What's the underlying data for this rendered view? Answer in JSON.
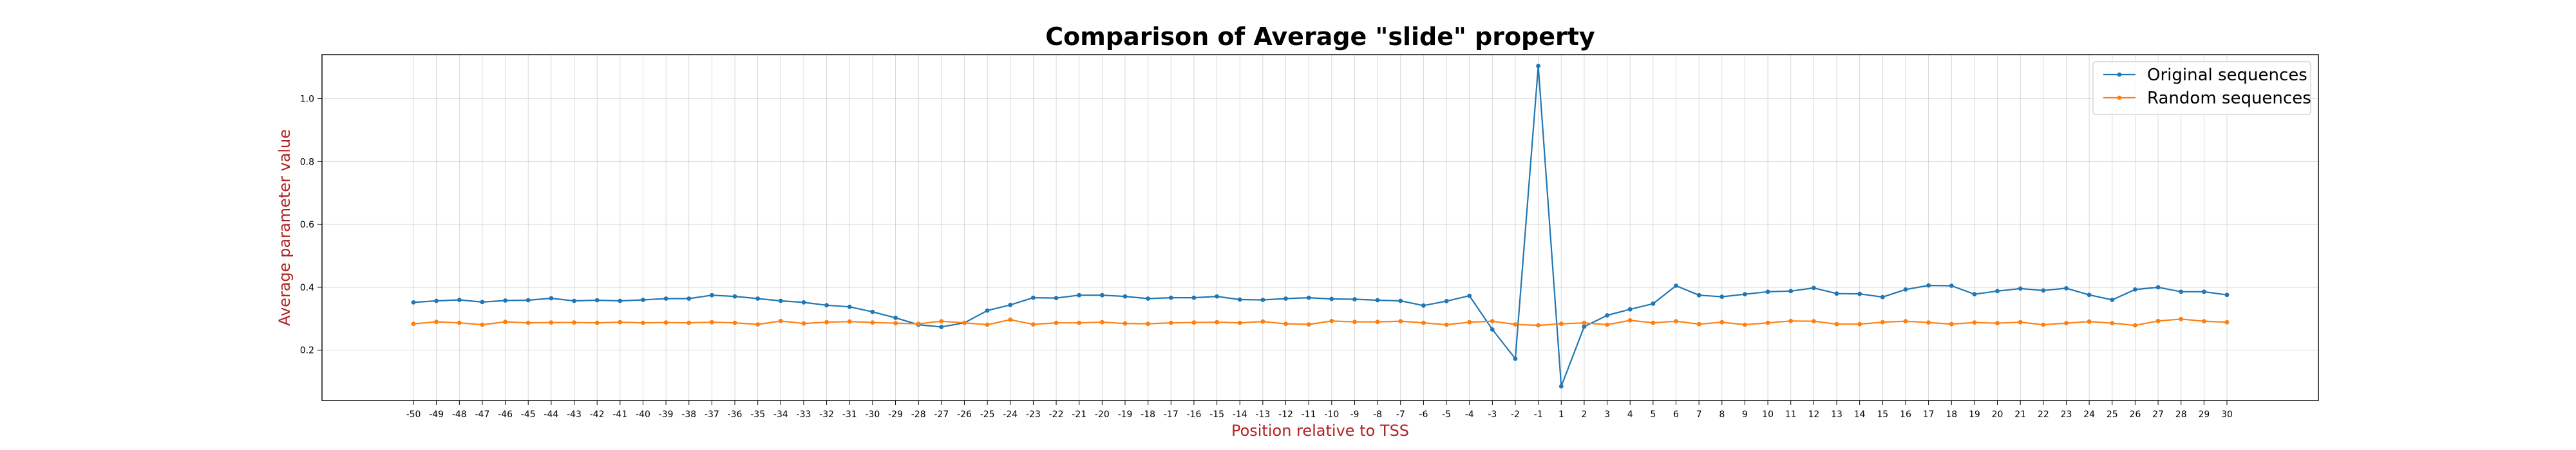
{
  "chart_data": {
    "type": "line",
    "title": "Comparison of Average \"slide\" property",
    "xlabel": "Position relative to TSS",
    "ylabel": "Average parameter value",
    "label_color": "#b22222",
    "x": [
      -50,
      -49,
      -48,
      -47,
      -46,
      -45,
      -44,
      -43,
      -42,
      -41,
      -40,
      -39,
      -38,
      -37,
      -36,
      -35,
      -34,
      -33,
      -32,
      -31,
      -30,
      -29,
      -28,
      -27,
      -26,
      -25,
      -24,
      -23,
      -22,
      -21,
      -20,
      -19,
      -18,
      -17,
      -16,
      -15,
      -14,
      -13,
      -12,
      -11,
      -10,
      -9,
      -8,
      -7,
      -6,
      -5,
      -4,
      -3,
      -2,
      -1,
      1,
      2,
      3,
      4,
      5,
      6,
      7,
      8,
      9,
      10,
      11,
      12,
      13,
      14,
      15,
      16,
      17,
      18,
      19,
      20,
      21,
      22,
      23,
      24,
      25,
      26,
      27,
      28,
      29,
      30
    ],
    "ylim": [
      0.04,
      1.14
    ],
    "yticks": [
      "0.2",
      "0.4",
      "0.6",
      "0.8",
      "1.0"
    ],
    "grid": true,
    "legend_position": "top-right",
    "series": [
      {
        "name": "Original sequences",
        "color": "#1f77b4",
        "values": [
          0.352,
          0.357,
          0.36,
          0.353,
          0.358,
          0.359,
          0.365,
          0.357,
          0.359,
          0.357,
          0.36,
          0.364,
          0.364,
          0.375,
          0.371,
          0.364,
          0.357,
          0.352,
          0.343,
          0.338,
          0.322,
          0.303,
          0.281,
          0.274,
          0.287,
          0.326,
          0.344,
          0.367,
          0.366,
          0.375,
          0.375,
          0.371,
          0.364,
          0.367,
          0.367,
          0.371,
          0.361,
          0.36,
          0.364,
          0.367,
          0.363,
          0.362,
          0.359,
          0.357,
          0.342,
          0.356,
          0.373,
          0.266,
          0.173,
          1.104,
          0.085,
          0.275,
          0.311,
          0.33,
          0.348,
          0.405,
          0.375,
          0.37,
          0.378,
          0.386,
          0.388,
          0.398,
          0.38,
          0.379,
          0.369,
          0.393,
          0.406,
          0.405,
          0.378,
          0.388,
          0.396,
          0.39,
          0.397,
          0.376,
          0.36,
          0.393,
          0.4,
          0.386,
          0.386,
          0.376
        ]
      },
      {
        "name": "Random sequences",
        "color": "#ff7f0e",
        "values": [
          0.284,
          0.29,
          0.287,
          0.281,
          0.29,
          0.287,
          0.288,
          0.288,
          0.287,
          0.289,
          0.287,
          0.288,
          0.287,
          0.289,
          0.287,
          0.282,
          0.293,
          0.285,
          0.289,
          0.291,
          0.288,
          0.286,
          0.284,
          0.292,
          0.287,
          0.281,
          0.297,
          0.282,
          0.287,
          0.287,
          0.289,
          0.285,
          0.284,
          0.287,
          0.288,
          0.289,
          0.287,
          0.291,
          0.284,
          0.282,
          0.293,
          0.29,
          0.29,
          0.292,
          0.287,
          0.281,
          0.289,
          0.292,
          0.282,
          0.279,
          0.284,
          0.287,
          0.281,
          0.295,
          0.287,
          0.292,
          0.283,
          0.289,
          0.281,
          0.287,
          0.293,
          0.292,
          0.283,
          0.283,
          0.289,
          0.292,
          0.288,
          0.283,
          0.288,
          0.286,
          0.289,
          0.281,
          0.286,
          0.291,
          0.286,
          0.279,
          0.293,
          0.299,
          0.292,
          0.289
        ]
      }
    ]
  }
}
